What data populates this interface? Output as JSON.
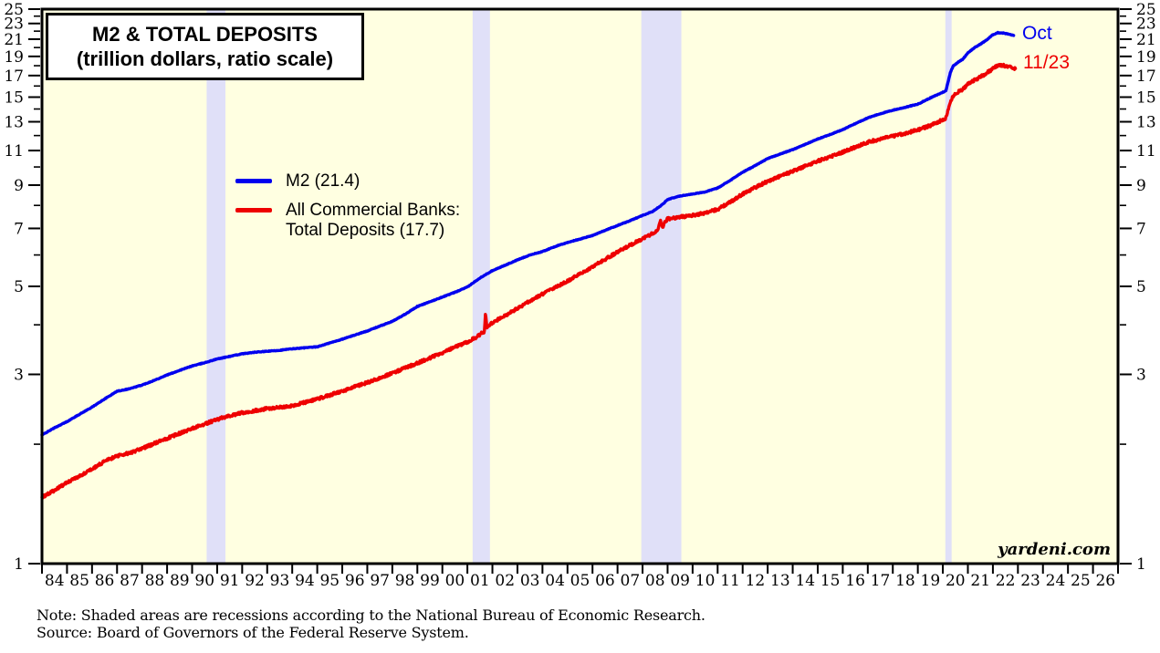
{
  "title_box": {
    "line1": "M2 & TOTAL DEPOSITS",
    "line2": "(trillion dollars, ratio scale)"
  },
  "legend": {
    "m2": "M2 (21.4)",
    "deposits_line1": "All Commercial Banks:",
    "deposits_line2": "Total Deposits (17.7)"
  },
  "end_labels": {
    "m2": "Oct",
    "deposits": "11/23"
  },
  "branding": "yardeni.com",
  "notes": {
    "line1": "Note: Shaded areas are recessions according to the National Bureau of Economic Research.",
    "line2": "Source: Board of Governors of the Federal Reserve System."
  },
  "colors": {
    "m2_line": "#0000EE",
    "deposits_line": "#EE0000",
    "plot_background": "#FFFFE1",
    "recession_band": "#E0E0F8",
    "axis": "#000000",
    "page_background": "#FFFFFF"
  },
  "chart_data": {
    "type": "line",
    "title": "M2 & TOTAL DEPOSITS (trillion dollars, ratio scale)",
    "y_scale": "log",
    "ylim": [
      1,
      25
    ],
    "xlim": [
      1984,
      2027
    ],
    "grid": false,
    "legend_position": "upper-left-inside",
    "y_ticks": [
      1,
      3,
      5,
      7,
      9,
      11,
      13,
      15,
      17,
      19,
      21,
      23,
      25
    ],
    "y_minor_ticks": [
      2,
      4,
      6,
      8,
      10,
      12,
      14,
      16,
      18,
      20,
      22,
      24
    ],
    "x_tick_labels": [
      "84",
      "85",
      "86",
      "87",
      "88",
      "89",
      "90",
      "91",
      "92",
      "93",
      "94",
      "95",
      "96",
      "97",
      "98",
      "99",
      "00",
      "01",
      "02",
      "03",
      "04",
      "05",
      "06",
      "07",
      "08",
      "09",
      "10",
      "11",
      "12",
      "13",
      "14",
      "15",
      "16",
      "17",
      "18",
      "19",
      "20",
      "21",
      "22",
      "23",
      "24",
      "25",
      "26"
    ],
    "recessions": [
      {
        "start": 1990.58,
        "end": 1991.33
      },
      {
        "start": 2001.21,
        "end": 2001.9
      },
      {
        "start": 2007.95,
        "end": 2009.55
      },
      {
        "start": 2020.1,
        "end": 2020.35
      }
    ],
    "series": [
      {
        "name": "M2",
        "last_value": 21.4,
        "end_label": "Oct",
        "color": "#0000EE",
        "jitter": 0.0018,
        "points": [
          [
            1984.0,
            2.11
          ],
          [
            1984.5,
            2.2
          ],
          [
            1985.0,
            2.28
          ],
          [
            1985.5,
            2.38
          ],
          [
            1986.0,
            2.48
          ],
          [
            1986.5,
            2.6
          ],
          [
            1987.0,
            2.72
          ],
          [
            1987.5,
            2.76
          ],
          [
            1988.0,
            2.82
          ],
          [
            1988.5,
            2.9
          ],
          [
            1989.0,
            2.99
          ],
          [
            1989.5,
            3.07
          ],
          [
            1990.0,
            3.15
          ],
          [
            1990.5,
            3.21
          ],
          [
            1991.0,
            3.28
          ],
          [
            1991.5,
            3.33
          ],
          [
            1992.0,
            3.38
          ],
          [
            1992.5,
            3.41
          ],
          [
            1993.0,
            3.43
          ],
          [
            1993.5,
            3.45
          ],
          [
            1994.0,
            3.48
          ],
          [
            1994.5,
            3.5
          ],
          [
            1995.0,
            3.52
          ],
          [
            1995.5,
            3.6
          ],
          [
            1996.0,
            3.68
          ],
          [
            1996.5,
            3.77
          ],
          [
            1997.0,
            3.86
          ],
          [
            1997.5,
            3.97
          ],
          [
            1998.0,
            4.08
          ],
          [
            1998.5,
            4.25
          ],
          [
            1999.0,
            4.45
          ],
          [
            1999.5,
            4.57
          ],
          [
            2000.0,
            4.7
          ],
          [
            2000.5,
            4.83
          ],
          [
            2001.0,
            4.98
          ],
          [
            2001.5,
            5.25
          ],
          [
            2002.0,
            5.48
          ],
          [
            2002.5,
            5.65
          ],
          [
            2003.0,
            5.83
          ],
          [
            2003.5,
            6.0
          ],
          [
            2004.0,
            6.12
          ],
          [
            2004.5,
            6.3
          ],
          [
            2005.0,
            6.45
          ],
          [
            2005.5,
            6.58
          ],
          [
            2006.0,
            6.72
          ],
          [
            2006.5,
            6.92
          ],
          [
            2007.0,
            7.12
          ],
          [
            2007.5,
            7.32
          ],
          [
            2008.0,
            7.55
          ],
          [
            2008.4,
            7.72
          ],
          [
            2008.8,
            8.05
          ],
          [
            2009.0,
            8.28
          ],
          [
            2009.5,
            8.45
          ],
          [
            2010.0,
            8.55
          ],
          [
            2010.5,
            8.65
          ],
          [
            2011.0,
            8.85
          ],
          [
            2011.5,
            9.25
          ],
          [
            2012.0,
            9.7
          ],
          [
            2012.5,
            10.08
          ],
          [
            2013.0,
            10.5
          ],
          [
            2013.5,
            10.78
          ],
          [
            2014.0,
            11.06
          ],
          [
            2014.5,
            11.4
          ],
          [
            2015.0,
            11.76
          ],
          [
            2015.5,
            12.08
          ],
          [
            2016.0,
            12.42
          ],
          [
            2016.5,
            12.86
          ],
          [
            2017.0,
            13.3
          ],
          [
            2017.5,
            13.62
          ],
          [
            2018.0,
            13.9
          ],
          [
            2018.5,
            14.14
          ],
          [
            2019.0,
            14.4
          ],
          [
            2019.5,
            14.93
          ],
          [
            2020.0,
            15.43
          ],
          [
            2020.12,
            15.55
          ],
          [
            2020.3,
            17.3
          ],
          [
            2020.42,
            18.0
          ],
          [
            2020.6,
            18.35
          ],
          [
            2020.8,
            18.7
          ],
          [
            2021.0,
            19.4
          ],
          [
            2021.25,
            19.95
          ],
          [
            2021.5,
            20.4
          ],
          [
            2021.75,
            20.9
          ],
          [
            2022.0,
            21.55
          ],
          [
            2022.2,
            21.8
          ],
          [
            2022.45,
            21.75
          ],
          [
            2022.65,
            21.6
          ],
          [
            2022.83,
            21.45
          ]
        ]
      },
      {
        "name": "All Commercial Banks: Total Deposits",
        "last_value": 17.7,
        "end_label": "11/23",
        "color": "#EE0000",
        "jitter": 0.008,
        "points": [
          [
            1984.0,
            1.47
          ],
          [
            1984.5,
            1.53
          ],
          [
            1985.0,
            1.6
          ],
          [
            1985.5,
            1.66
          ],
          [
            1986.0,
            1.73
          ],
          [
            1986.5,
            1.81
          ],
          [
            1987.0,
            1.87
          ],
          [
            1987.5,
            1.9
          ],
          [
            1988.0,
            1.95
          ],
          [
            1988.5,
            2.01
          ],
          [
            1989.0,
            2.07
          ],
          [
            1989.5,
            2.13
          ],
          [
            1990.0,
            2.19
          ],
          [
            1990.5,
            2.25
          ],
          [
            1991.0,
            2.31
          ],
          [
            1991.5,
            2.36
          ],
          [
            1992.0,
            2.4
          ],
          [
            1992.5,
            2.43
          ],
          [
            1993.0,
            2.46
          ],
          [
            1993.5,
            2.48
          ],
          [
            1994.0,
            2.5
          ],
          [
            1994.5,
            2.55
          ],
          [
            1995.0,
            2.6
          ],
          [
            1995.5,
            2.66
          ],
          [
            1996.0,
            2.72
          ],
          [
            1996.5,
            2.79
          ],
          [
            1997.0,
            2.86
          ],
          [
            1997.5,
            2.94
          ],
          [
            1998.0,
            3.02
          ],
          [
            1998.5,
            3.11
          ],
          [
            1999.0,
            3.2
          ],
          [
            1999.5,
            3.3
          ],
          [
            2000.0,
            3.4
          ],
          [
            2000.5,
            3.51
          ],
          [
            2001.0,
            3.62
          ],
          [
            2001.35,
            3.72
          ],
          [
            2001.68,
            3.85
          ],
          [
            2001.72,
            4.28
          ],
          [
            2001.78,
            3.95
          ],
          [
            2002.0,
            4.05
          ],
          [
            2002.5,
            4.22
          ],
          [
            2003.0,
            4.4
          ],
          [
            2003.5,
            4.6
          ],
          [
            2004.0,
            4.78
          ],
          [
            2004.5,
            4.97
          ],
          [
            2005.0,
            5.15
          ],
          [
            2005.5,
            5.38
          ],
          [
            2006.0,
            5.6
          ],
          [
            2006.5,
            5.85
          ],
          [
            2007.0,
            6.1
          ],
          [
            2007.5,
            6.35
          ],
          [
            2008.0,
            6.6
          ],
          [
            2008.3,
            6.75
          ],
          [
            2008.6,
            6.9
          ],
          [
            2008.72,
            7.3
          ],
          [
            2008.8,
            7.05
          ],
          [
            2008.92,
            7.3
          ],
          [
            2009.0,
            7.4
          ],
          [
            2009.5,
            7.48
          ],
          [
            2010.0,
            7.55
          ],
          [
            2010.5,
            7.66
          ],
          [
            2011.0,
            7.82
          ],
          [
            2011.5,
            8.15
          ],
          [
            2012.0,
            8.55
          ],
          [
            2012.5,
            8.88
          ],
          [
            2013.0,
            9.2
          ],
          [
            2013.5,
            9.48
          ],
          [
            2014.0,
            9.75
          ],
          [
            2014.5,
            10.05
          ],
          [
            2015.0,
            10.35
          ],
          [
            2015.5,
            10.62
          ],
          [
            2016.0,
            10.9
          ],
          [
            2016.5,
            11.22
          ],
          [
            2017.0,
            11.55
          ],
          [
            2017.5,
            11.76
          ],
          [
            2018.0,
            11.95
          ],
          [
            2018.5,
            12.16
          ],
          [
            2019.0,
            12.4
          ],
          [
            2019.5,
            12.72
          ],
          [
            2020.0,
            13.15
          ],
          [
            2020.12,
            13.28
          ],
          [
            2020.3,
            14.6
          ],
          [
            2020.42,
            15.1
          ],
          [
            2020.6,
            15.45
          ],
          [
            2020.8,
            15.7
          ],
          [
            2021.0,
            16.2
          ],
          [
            2021.25,
            16.55
          ],
          [
            2021.5,
            16.85
          ],
          [
            2021.75,
            17.25
          ],
          [
            2022.0,
            17.7
          ],
          [
            2022.2,
            18.0
          ],
          [
            2022.35,
            18.05
          ],
          [
            2022.55,
            17.98
          ],
          [
            2022.75,
            17.85
          ],
          [
            2022.9,
            17.7
          ]
        ]
      }
    ]
  }
}
